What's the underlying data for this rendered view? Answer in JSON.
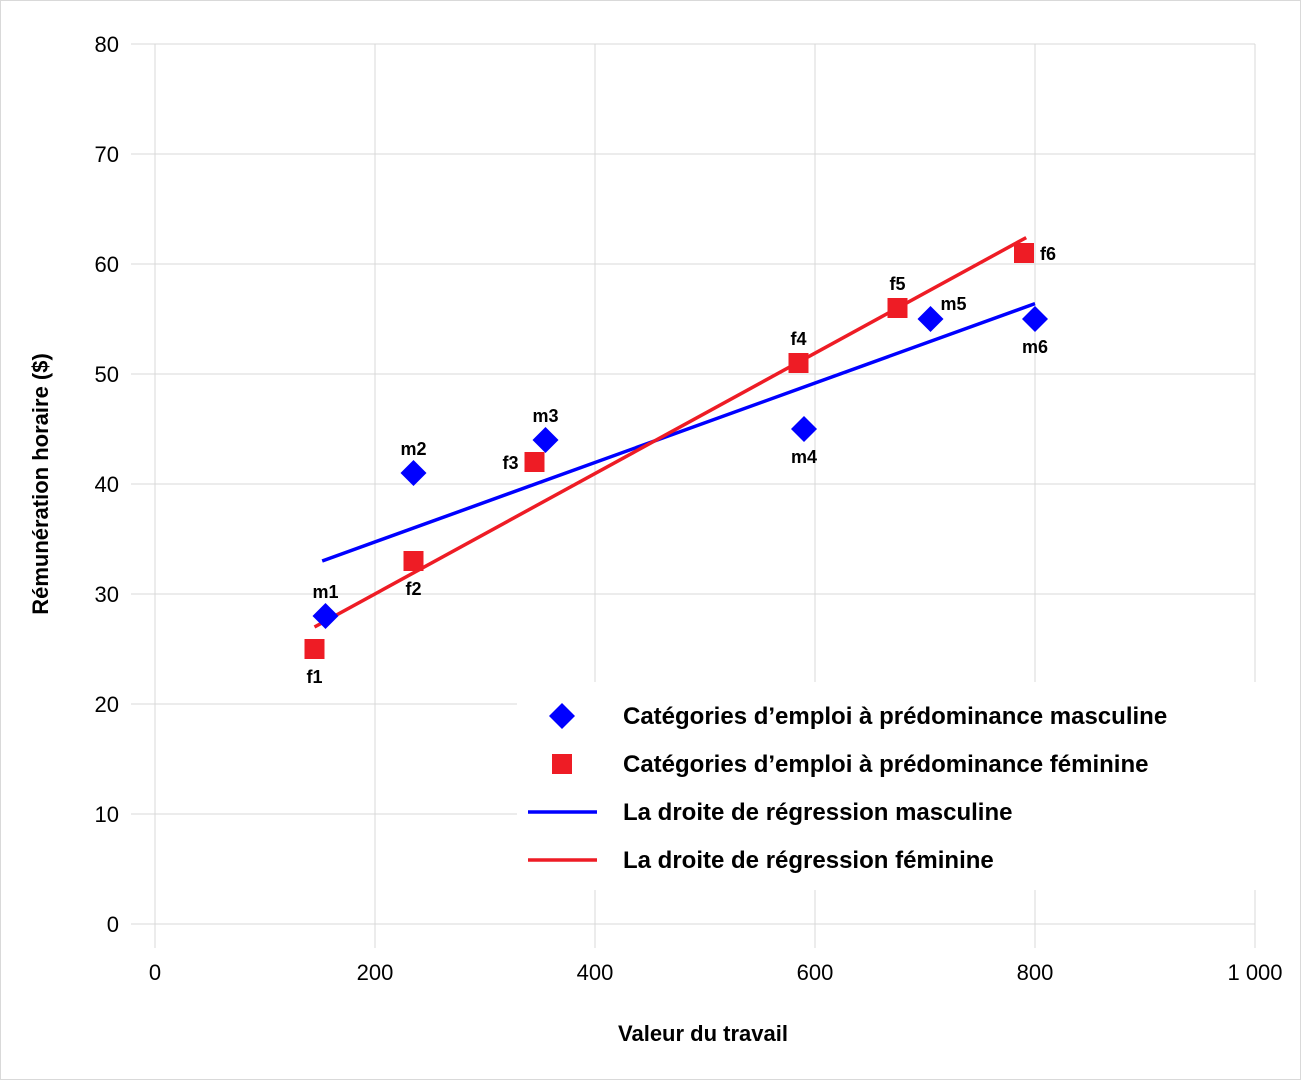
{
  "chart_data": {
    "type": "scatter",
    "xlabel": "Valeur du travail",
    "ylabel": "Rémunération horaire ($)",
    "xlim": [
      0,
      1000
    ],
    "ylim": [
      0,
      80
    ],
    "x_ticks": [
      0,
      200,
      400,
      600,
      800,
      1000
    ],
    "x_tick_labels": [
      "0",
      "200",
      "400",
      "600",
      "800",
      "1 000"
    ],
    "y_ticks": [
      0,
      10,
      20,
      30,
      40,
      50,
      60,
      70,
      80
    ],
    "y_tick_labels": [
      "0",
      "10",
      "20",
      "30",
      "40",
      "50",
      "60",
      "70",
      "80"
    ],
    "grid": true,
    "legend_position": "bottom-right",
    "series": [
      {
        "name": "Catégories d’emploi à prédominance masculine",
        "marker": "diamond",
        "color": "#0000ff",
        "points": [
          {
            "label": "m1",
            "x": 155,
            "y": 28,
            "label_pos": "above"
          },
          {
            "label": "m2",
            "x": 235,
            "y": 41,
            "label_pos": "above"
          },
          {
            "label": "m3",
            "x": 355,
            "y": 44,
            "label_pos": "above"
          },
          {
            "label": "m4",
            "x": 590,
            "y": 45,
            "label_pos": "below"
          },
          {
            "label": "m5",
            "x": 705,
            "y": 55,
            "label_pos": "upper-right"
          },
          {
            "label": "m6",
            "x": 800,
            "y": 55,
            "label_pos": "below"
          }
        ]
      },
      {
        "name": "Catégories d’emploi à prédominance féminine",
        "marker": "square",
        "color": "#ee1c25",
        "points": [
          {
            "label": "f1",
            "x": 145,
            "y": 25,
            "label_pos": "below"
          },
          {
            "label": "f2",
            "x": 235,
            "y": 33,
            "label_pos": "below"
          },
          {
            "label": "f3",
            "x": 345,
            "y": 42,
            "label_pos": "left"
          },
          {
            "label": "f4",
            "x": 585,
            "y": 51,
            "label_pos": "above"
          },
          {
            "label": "f5",
            "x": 675,
            "y": 56,
            "label_pos": "above"
          },
          {
            "label": "f6",
            "x": 790,
            "y": 61,
            "label_pos": "right"
          }
        ]
      }
    ],
    "lines": [
      {
        "name": "La droite de régression masculine",
        "color": "#0000ff",
        "x": [
          152,
          800
        ],
        "y": [
          33.0,
          56.4
        ]
      },
      {
        "name": "La droite de régression féminine",
        "color": "#ee1c25",
        "x": [
          145,
          792
        ],
        "y": [
          27.0,
          62.4
        ]
      }
    ]
  }
}
